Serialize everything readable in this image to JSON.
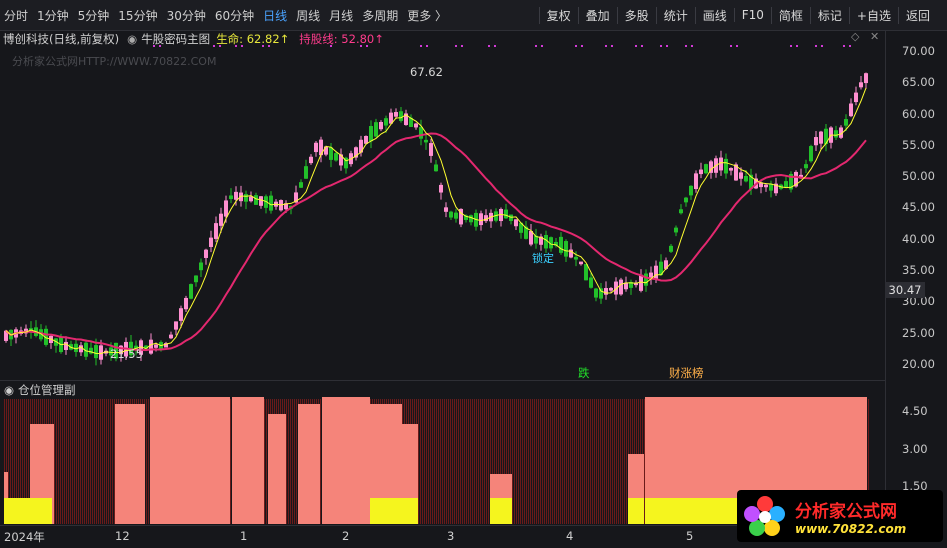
{
  "toolbar": {
    "periods": [
      "分时",
      "1分钟",
      "5分钟",
      "15分钟",
      "30分钟",
      "60分钟",
      "日线",
      "周线",
      "月线",
      "多周期",
      "更多 〉"
    ],
    "active_period": "日线",
    "right_buttons": [
      "复权",
      "叠加",
      "多股",
      "统计",
      "画线",
      "F10",
      "简框",
      "标记",
      "+自选",
      "返回"
    ]
  },
  "info": {
    "stock": "博创科技(日线,前复权)",
    "indicator": "牛股密码主图",
    "life_label": "生命: 62.82↑",
    "hold_label": "持股线: 52.80↑"
  },
  "watermark": "分析家公式网HTTP://WWW.70822.COM",
  "price_scale": [
    "70.00",
    "65.00",
    "60.00",
    "55.00",
    "50.00",
    "45.00",
    "40.00",
    "35.00",
    "30.00",
    "25.00",
    "20.00"
  ],
  "current_price": "30.47",
  "annotations": {
    "high": "67.62",
    "low": "21.55",
    "lock": "锁定",
    "drop": "跌",
    "wealth": "财涨榜"
  },
  "sub_panel": {
    "title": "仓位管理副",
    "scale": [
      "4.50",
      "3.00",
      "1.50"
    ]
  },
  "xaxis": [
    "2024年",
    "12",
    "1",
    "2",
    "3",
    "4",
    "5"
  ],
  "logo": {
    "cn": "分析家公式网",
    "url": "www.70822.com"
  },
  "colors": {
    "up": "#ff8fd0",
    "down": "#22c02a",
    "ma_fast": "#ffff30",
    "ma_slow": "#e3286f",
    "bar_salmon": "#f5847a",
    "bar_yellow": "#f5f51e",
    "bar_dark": "#6a1a1a"
  }
}
